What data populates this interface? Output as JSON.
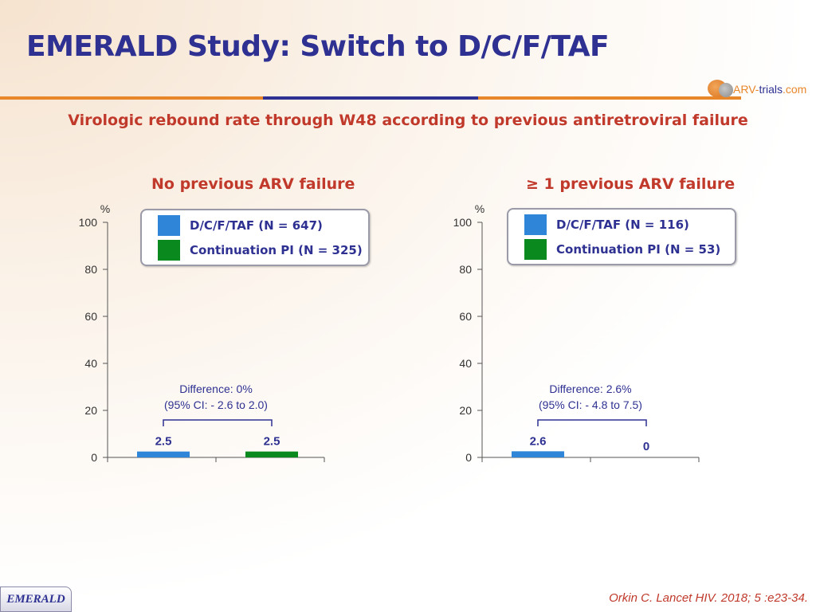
{
  "title": "EMERALD Study: Switch to D/C/F/TAF",
  "subtitle": "Virologic rebound rate through W48 according to previous antiretroviral failure",
  "logo": {
    "part1": "ARV-",
    "part2": "trials",
    "part3": ".com"
  },
  "colors": {
    "title": "#2e3192",
    "accent": "#c0392b",
    "bar_dcftaf": "#2f86d9",
    "bar_pi": "#0a8a1e"
  },
  "footer": {
    "badge": "EMERALD",
    "citation": "Orkin C. Lancet HIV. 2018; 5 :e23-34."
  },
  "chart_data": [
    {
      "type": "bar",
      "title": "No previous ARV failure",
      "ylabel": "%",
      "ylim": [
        0,
        100
      ],
      "yticks": [
        0,
        20,
        40,
        60,
        80,
        100
      ],
      "categories": [
        "D/C/F/TAF (N = 647)",
        "Continuation PI (N = 325)"
      ],
      "values": [
        2.5,
        2.5
      ],
      "data_labels": [
        "2.5",
        "2.5"
      ],
      "annotation": {
        "line1": "Difference: 0%",
        "line2": "(95% CI: - 2.6 to 2.0)"
      }
    },
    {
      "type": "bar",
      "title": "≥ 1 previous ARV failure",
      "ylabel": "%",
      "ylim": [
        0,
        100
      ],
      "yticks": [
        0,
        20,
        40,
        60,
        80,
        100
      ],
      "categories": [
        "D/C/F/TAF (N = 116)",
        "Continuation PI (N = 53)"
      ],
      "values": [
        2.6,
        0
      ],
      "data_labels": [
        "2.6",
        "0"
      ],
      "annotation": {
        "line1": "Difference: 2.6%",
        "line2": "(95% CI: - 4.8 to 7.5)"
      }
    }
  ]
}
